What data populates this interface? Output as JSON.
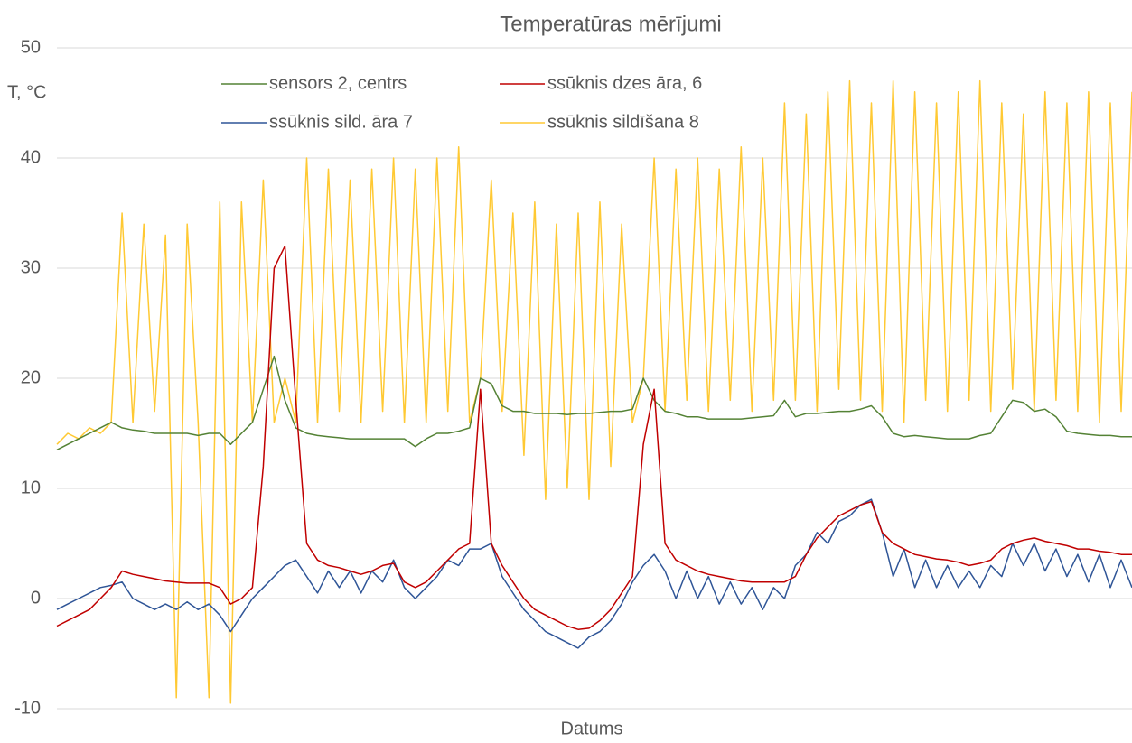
{
  "chart_data": {
    "type": "line",
    "title": "Temperatūras mērījumi",
    "y_label": "T, °C",
    "x_label": "Datums",
    "categories": [
      null,
      null,
      null,
      null,
      null,
      null,
      null,
      null,
      null,
      null,
      null,
      null,
      null,
      null,
      null,
      null,
      null,
      null,
      null,
      null,
      null,
      null,
      null,
      null,
      null,
      null,
      null,
      null,
      null,
      null,
      null,
      null,
      null,
      null,
      null,
      null,
      null,
      null,
      null,
      null,
      null,
      null,
      null,
      null,
      null,
      null,
      null,
      null,
      null,
      null,
      null,
      null,
      null,
      null,
      null,
      null,
      null,
      null,
      null,
      null,
      null,
      null,
      null,
      null,
      null,
      null,
      null,
      null,
      null,
      null,
      null,
      null,
      null,
      null,
      null,
      null,
      null,
      null,
      null,
      null,
      null,
      null,
      null,
      null,
      null,
      null,
      null,
      null,
      null,
      null,
      null,
      null,
      null,
      null,
      null,
      null,
      null,
      null,
      null,
      null
    ],
    "ylim": [
      -10,
      50
    ],
    "yticks": [
      -10,
      0,
      10,
      20,
      30,
      40,
      50
    ],
    "grid": true,
    "series": [
      {
        "name": "sensors 2, centrs",
        "color": "#548235",
        "values": [
          13.5,
          14,
          14.5,
          15,
          15.5,
          16,
          15.5,
          15.3,
          15.2,
          15,
          15,
          15,
          15,
          14.8,
          15,
          15,
          14,
          15,
          16,
          19,
          22,
          18,
          15.5,
          15,
          14.8,
          14.7,
          14.6,
          14.5,
          14.5,
          14.5,
          14.5,
          14.5,
          14.5,
          13.8,
          14.5,
          15,
          15,
          15.2,
          15.5,
          20,
          19.5,
          17.5,
          17,
          17,
          16.8,
          16.8,
          16.8,
          16.7,
          16.8,
          16.8,
          16.9,
          17,
          17,
          17.2,
          20,
          18,
          17,
          16.8,
          16.5,
          16.5,
          16.3,
          16.3,
          16.3,
          16.3,
          16.4,
          16.5,
          16.6,
          18,
          16.5,
          16.8,
          16.8,
          16.9,
          17,
          17,
          17.2,
          17.5,
          16.5,
          15,
          14.7,
          14.8,
          14.7,
          14.6,
          14.5,
          14.5,
          14.5,
          14.8,
          15,
          16.5,
          18,
          17.8,
          17,
          17.2,
          16.5,
          15.2,
          15,
          14.9,
          14.8,
          14.8,
          14.7,
          14.7
        ]
      },
      {
        "name": "ssūknis dzes āra, 6",
        "color": "#c00000",
        "values": [
          -2.5,
          -2,
          -1.5,
          -1,
          0,
          1,
          2.5,
          2.2,
          2,
          1.8,
          1.6,
          1.5,
          1.4,
          1.4,
          1.4,
          1,
          -0.5,
          0,
          1,
          12,
          30,
          32,
          18,
          5,
          3.5,
          3,
          2.8,
          2.5,
          2.2,
          2.5,
          3,
          3.2,
          1.5,
          1,
          1.5,
          2.5,
          3.5,
          4.5,
          5,
          19,
          5,
          3,
          1.5,
          0,
          -1,
          -1.5,
          -2,
          -2.5,
          -2.8,
          -2.7,
          -2,
          -1,
          0.5,
          2,
          14,
          19,
          5,
          3.5,
          3,
          2.5,
          2.2,
          2,
          1.8,
          1.6,
          1.5,
          1.5,
          1.5,
          1.5,
          2,
          4,
          5.5,
          6.5,
          7.5,
          8,
          8.5,
          8.8,
          6,
          5,
          4.5,
          4,
          3.8,
          3.6,
          3.5,
          3.3,
          3,
          3.2,
          3.5,
          4.5,
          5,
          5.3,
          5.5,
          5.2,
          5,
          4.8,
          4.5,
          4.5,
          4.3,
          4.2,
          4,
          4
        ]
      },
      {
        "name": "ssūknis sild. āra 7",
        "color": "#2f5597",
        "values": [
          -1,
          -0.5,
          0,
          0.5,
          1,
          1.2,
          1.5,
          0,
          -0.5,
          -1,
          -0.5,
          -1,
          -0.3,
          -1,
          -0.5,
          -1.5,
          -3,
          -1.5,
          0,
          1,
          2,
          3,
          3.5,
          2,
          0.5,
          2.5,
          1,
          2.5,
          0.5,
          2.5,
          1.5,
          3.5,
          1,
          0,
          1,
          2,
          3.5,
          3,
          4.5,
          4.5,
          5,
          2,
          0.5,
          -1,
          -2,
          -3,
          -3.5,
          -4,
          -4.5,
          -3.5,
          -3,
          -2,
          -0.5,
          1.5,
          3,
          4,
          2.5,
          0,
          2.5,
          0,
          2,
          -0.5,
          1.5,
          -0.5,
          1,
          -1,
          1,
          0,
          3,
          4,
          6,
          5,
          7,
          7.5,
          8.5,
          9,
          6,
          2,
          4.5,
          1,
          3.5,
          1,
          3,
          1,
          2.5,
          1,
          3,
          2,
          5,
          3,
          5,
          2.5,
          4.5,
          2,
          4,
          1.5,
          4,
          1,
          3.5,
          1
        ]
      },
      {
        "name": "ssūknis sildīšana 8",
        "color": "#ffc933",
        "values": [
          14,
          15,
          14.5,
          15.5,
          15,
          16,
          35,
          16,
          34,
          17,
          33,
          -9,
          34,
          16,
          -9,
          36,
          -9.5,
          36,
          16,
          38,
          16,
          20,
          16,
          40,
          16,
          39,
          17,
          38,
          16,
          39,
          17,
          40,
          16,
          39,
          16,
          40,
          17,
          41,
          16,
          20,
          38,
          17,
          35,
          13,
          36,
          9,
          34,
          10,
          35,
          9,
          36,
          12,
          34,
          16,
          20,
          40,
          17,
          39,
          18,
          40,
          17,
          39,
          18,
          41,
          17,
          40,
          18,
          45,
          18,
          44,
          17,
          46,
          19,
          47,
          18,
          45,
          17,
          47,
          16,
          46,
          18,
          45,
          17,
          46,
          18,
          47,
          17,
          45,
          19,
          44,
          17,
          46,
          18,
          45,
          17,
          46,
          16,
          45,
          17,
          46
        ]
      }
    ]
  }
}
